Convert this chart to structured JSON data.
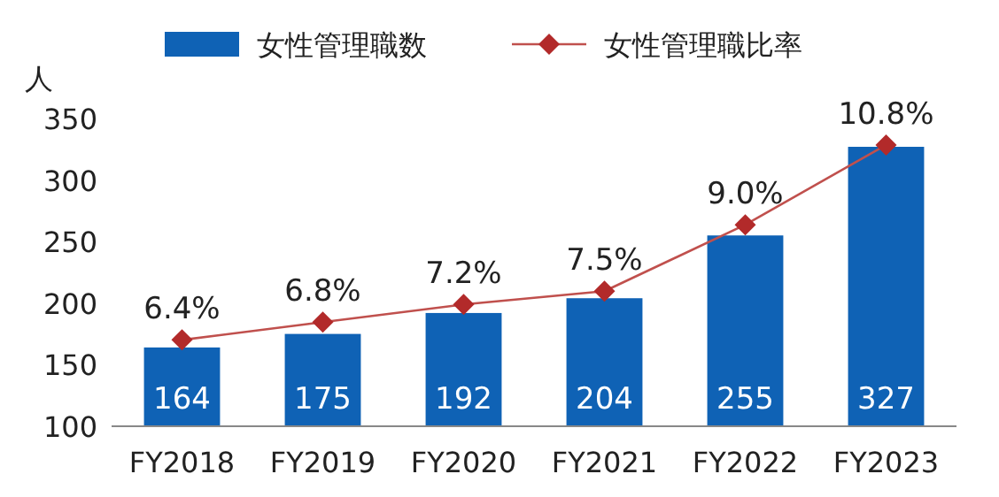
{
  "chart_data": {
    "type": "bar",
    "ylabel": "人",
    "categories": [
      "FY2018",
      "FY2019",
      "FY2020",
      "FY2021",
      "FY2022",
      "FY2023"
    ],
    "series": [
      {
        "name": "女性管理職数",
        "color": "#0f62b5",
        "values": [
          164,
          175,
          192,
          204,
          255,
          327
        ],
        "data_labels": true
      },
      {
        "name": "女性管理職比率",
        "type": "line",
        "axis": "y2",
        "color": "#c0504d",
        "marker": "diamond",
        "values": [
          6.4,
          6.8,
          7.2,
          7.5,
          9.0,
          10.8
        ],
        "value_labels": [
          "6.4%",
          "6.8%",
          "7.2%",
          "7.5%",
          "9.0%",
          "10.8%"
        ]
      }
    ],
    "ylim": [
      100,
      350
    ],
    "yticks": [
      100,
      150,
      200,
      250,
      300,
      350
    ],
    "legend": "top",
    "grid": false
  }
}
